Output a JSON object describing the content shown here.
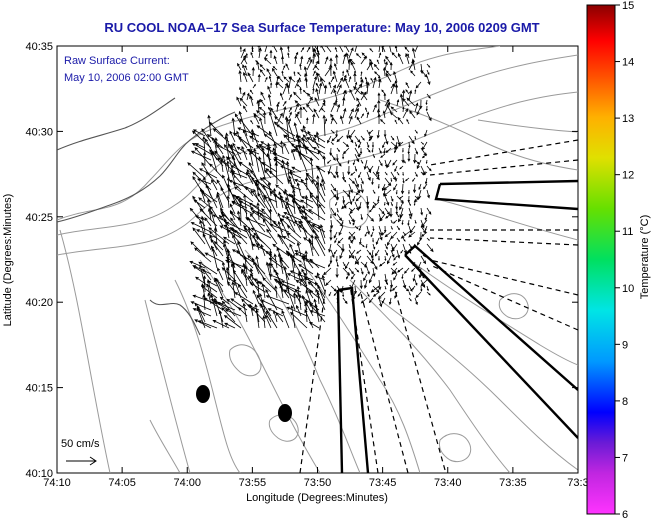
{
  "title": "RU COOL  NOAA–17  Sea Surface Temperature:  May 10, 2006 0209 GMT",
  "legend_lines": [
    "Raw Surface Current:",
    "May 10, 2006 02:00 GMT"
  ],
  "scale_label": "50 cm/s",
  "x_axis": {
    "label": "Longitude (Degrees:Minutes)",
    "ticks": [
      "74:10",
      "74:05",
      "74:00",
      "73:55",
      "73:50",
      "73:45",
      "73:40",
      "73:35",
      "73:3"
    ]
  },
  "y_axis": {
    "label": "Latitude (Degrees:Minutes)",
    "ticks": [
      "40:35",
      "40:30",
      "40:25",
      "40:20",
      "40:15",
      "40:10"
    ]
  },
  "colorbar": {
    "label": "Temperature (°C)",
    "ticks": [
      "15",
      "14",
      "13",
      "12",
      "11",
      "10",
      "9",
      "8",
      "7",
      "6"
    ],
    "stops": [
      "#ff33ff",
      "#6a1bd6",
      "#0000ff",
      "#0099ff",
      "#00e5e5",
      "#00e060",
      "#66e000",
      "#e0e000",
      "#ffb000",
      "#ff5000",
      "#ff0000",
      "#8b0000"
    ]
  },
  "colors": {
    "title": "#1a1aa8",
    "contour": "#999999",
    "arrows": "#000000"
  }
}
